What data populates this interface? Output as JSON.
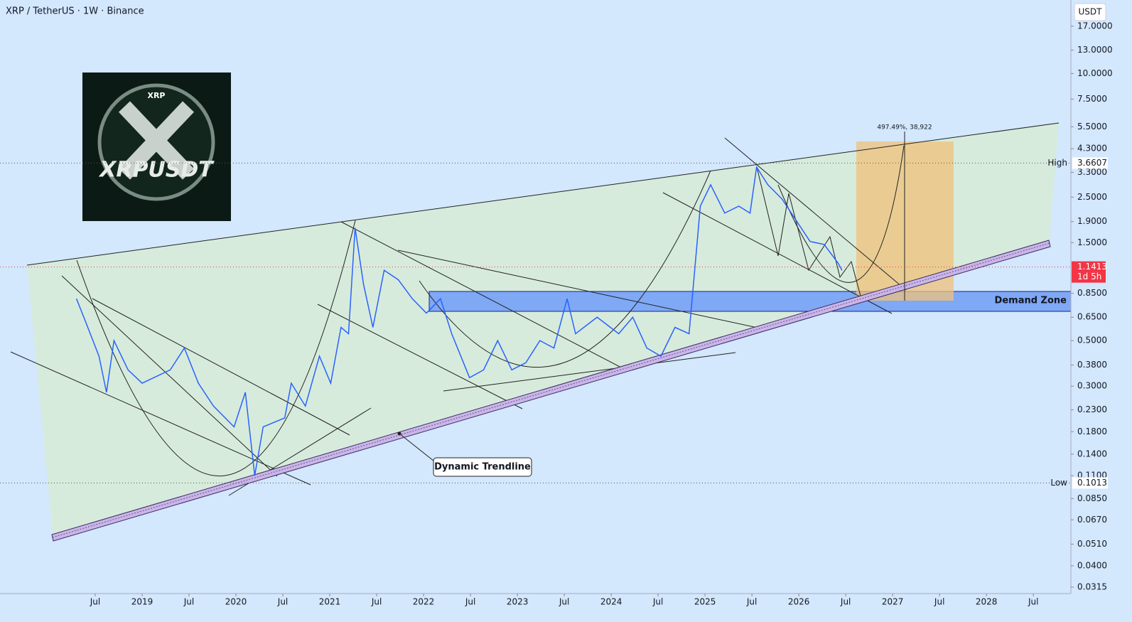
{
  "chart_data": {
    "type": "line",
    "title": "XRP / TetherUS · 1W · Binance",
    "y_axis_label": "USDT",
    "log_scale": true,
    "color": "#2962ff",
    "x": [
      2018.3,
      2018.39,
      2018.54,
      2018.62,
      2018.7,
      2018.85,
      2019.0,
      2019.3,
      2019.45,
      2019.6,
      2019.76,
      2019.98,
      2020.1,
      2020.2,
      2020.29,
      2020.52,
      2020.59,
      2020.74,
      2020.89,
      2021.01,
      2021.12,
      2021.2,
      2021.27,
      2021.36,
      2021.46,
      2021.58,
      2021.73,
      2021.88,
      2022.03,
      2022.18,
      2022.3,
      2022.49,
      2022.64,
      2022.79,
      2022.94,
      2023.09,
      2023.24,
      2023.39,
      2023.53,
      2023.62,
      2023.85,
      2024.08,
      2024.23,
      2024.38,
      2024.53,
      2024.68,
      2024.83,
      2024.89,
      2024.95,
      2025.06,
      2025.21,
      2025.36,
      2025.48,
      2025.55,
      2025.67,
      2025.82,
      2025.97,
      2026.12,
      2026.27,
      2026.42,
      2026.46
    ],
    "values": [
      0.8,
      0.63,
      0.42,
      0.28,
      0.5,
      0.36,
      0.31,
      0.36,
      0.46,
      0.31,
      0.24,
      0.19,
      0.28,
      0.11,
      0.19,
      0.21,
      0.31,
      0.24,
      0.42,
      0.31,
      0.58,
      0.54,
      1.77,
      0.94,
      0.58,
      1.1,
      0.99,
      0.8,
      0.68,
      0.8,
      0.54,
      0.33,
      0.36,
      0.5,
      0.36,
      0.39,
      0.5,
      0.46,
      0.8,
      0.54,
      0.65,
      0.54,
      0.65,
      0.46,
      0.42,
      0.58,
      0.54,
      1.1,
      2.26,
      2.87,
      2.09,
      2.26,
      2.09,
      3.5,
      2.87,
      2.45,
      1.93,
      1.52,
      1.47,
      1.19,
      1.1
    ],
    "xlim": [
      2017.485,
      2028.9
    ],
    "ylim": [
      0.0293,
      22.8
    ],
    "xticks": [
      {
        "value": 2018.5,
        "label": "Jul"
      },
      2019,
      {
        "value": 2019.5,
        "label": "Jul"
      },
      2020,
      {
        "value": 2020.5,
        "label": "Jul"
      },
      2021,
      {
        "value": 2021.5,
        "label": "Jul"
      },
      2022,
      {
        "value": 2022.5,
        "label": "Jul"
      },
      2023,
      {
        "value": 2023.5,
        "label": "Jul"
      },
      2024,
      {
        "value": 2024.5,
        "label": "Jul"
      },
      2025,
      {
        "value": 2025.5,
        "label": "Jul"
      },
      2026,
      {
        "value": 2026.5,
        "label": "Jul"
      },
      2027,
      {
        "value": 2027.5,
        "label": "Jul"
      },
      2028,
      {
        "value": 2028.5,
        "label": "Jul"
      }
    ],
    "yticks": [
      {
        "value": 17,
        "label": "17.0000"
      },
      {
        "value": 13,
        "label": "13.0000"
      },
      {
        "value": 10,
        "label": "10.0000"
      },
      {
        "value": 7.5,
        "label": "7.5000"
      },
      {
        "value": 5.5,
        "label": "5.5000"
      },
      {
        "value": 4.3,
        "label": "4.3000"
      },
      {
        "value": 3.3,
        "label": "3.3000"
      },
      {
        "value": 2.5,
        "label": "2.5000"
      },
      {
        "value": 1.9,
        "label": "1.9000"
      },
      {
        "value": 1.5,
        "label": "1.5000"
      },
      {
        "value": 0.85,
        "label": "0.8500"
      },
      {
        "value": 0.65,
        "label": "0.6500"
      },
      {
        "value": 0.5,
        "label": "0.5000"
      },
      {
        "value": 0.38,
        "label": "0.3800"
      },
      {
        "value": 0.3,
        "label": "0.3000"
      },
      {
        "value": 0.23,
        "label": "0.2300"
      },
      {
        "value": 0.18,
        "label": "0.1800"
      },
      {
        "value": 0.14,
        "label": "0.1400"
      },
      {
        "value": 0.11,
        "label": "0.1100"
      },
      {
        "value": 0.085,
        "label": "0.0850"
      },
      {
        "value": 0.067,
        "label": "0.0670"
      },
      {
        "value": 0.051,
        "label": "0.0510"
      },
      {
        "value": 0.04,
        "label": "0.0400"
      },
      {
        "value": 0.0315,
        "label": "0.0315"
      }
    ],
    "high": {
      "label": "High",
      "value": 3.6607
    },
    "low": {
      "label": "Low",
      "value": 0.1013
    },
    "last": {
      "value": 1.1413,
      "countdown": "1d 5h"
    },
    "annotations": [
      "Demand Zone",
      "Dynamic Trendline",
      "497.49%, 38,922"
    ],
    "logo": [
      "XRP",
      "XRPUSDT"
    ]
  }
}
